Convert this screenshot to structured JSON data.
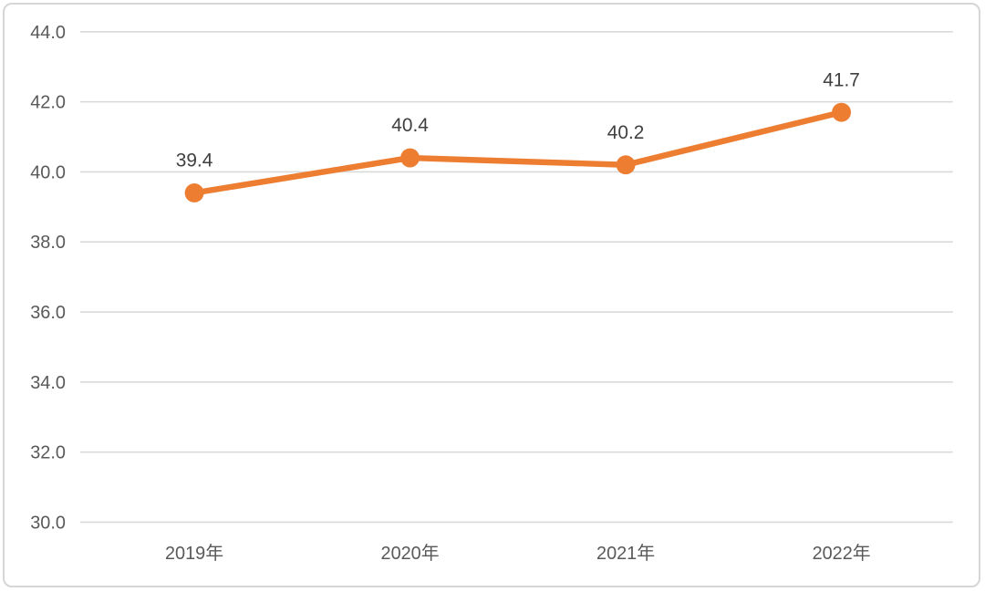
{
  "chart_data": {
    "type": "line",
    "title": "",
    "categories": [
      "2019年",
      "2020年",
      "2021年",
      "2022年"
    ],
    "series": [
      {
        "name": "value",
        "values": [
          39.4,
          40.4,
          40.2,
          41.7
        ]
      }
    ],
    "data_labels": [
      "39.4",
      "40.4",
      "40.2",
      "41.7"
    ],
    "xlabel": "",
    "ylabel": "",
    "ylim": [
      30.0,
      44.0
    ],
    "y_tick_step": 2.0,
    "y_tick_labels": [
      "44.0",
      "42.0",
      "40.0",
      "38.0",
      "36.0",
      "34.0",
      "32.0",
      "30.0"
    ],
    "grid": true,
    "legend": false,
    "colors": {
      "line": "#ED7D31",
      "marker": "#ED7D31",
      "gridline": "#D9D9D9",
      "axis_tick_label": "#595959",
      "data_label": "#404040",
      "background": "#FFFFFF",
      "border": "#D6D6D6"
    }
  }
}
